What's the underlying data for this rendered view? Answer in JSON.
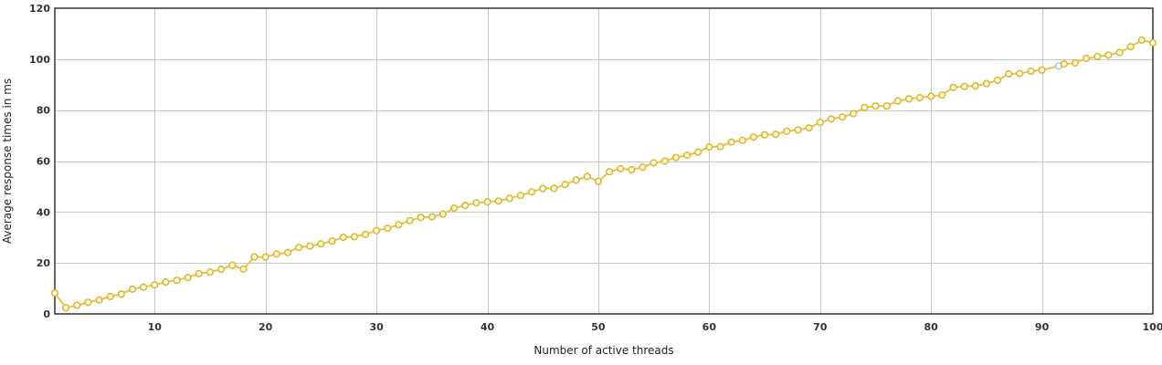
{
  "chart_data": {
    "type": "line",
    "title": "",
    "xlabel": "Number of active threads",
    "ylabel": "Average response times in ms",
    "xlim": [
      1,
      100
    ],
    "ylim": [
      0,
      120
    ],
    "x_ticks": [
      10,
      20,
      30,
      40,
      50,
      60,
      70,
      80,
      90,
      100
    ],
    "y_ticks": [
      0,
      20,
      40,
      60,
      80,
      100,
      120
    ],
    "grid": true,
    "legend": "none",
    "colors": {
      "line": "#e8c34a",
      "point_fill": "#fffde8",
      "point_stroke": "#e0b830",
      "highlight_point_stroke": "#a9c8e8",
      "grid": "#c8c8c8",
      "frame": "#333333"
    },
    "highlight_point_index": 90,
    "series": [
      {
        "x": [
          1,
          2,
          3,
          4,
          5,
          6,
          7,
          8,
          9,
          10,
          11,
          12,
          13,
          14,
          15,
          16,
          17,
          18,
          19,
          20,
          21,
          22,
          23,
          24,
          25,
          26,
          27,
          28,
          29,
          30,
          31,
          32,
          33,
          34,
          35,
          36,
          37,
          38,
          39,
          40,
          41,
          42,
          43,
          44,
          45,
          46,
          47,
          48,
          49,
          50,
          51,
          52,
          53,
          54,
          55,
          56,
          57,
          58,
          59,
          60,
          61,
          62,
          63,
          64,
          65,
          66,
          67,
          68,
          69,
          70,
          71,
          72,
          73,
          74,
          75,
          76,
          77,
          78,
          79,
          80,
          81,
          82,
          83,
          84,
          85,
          86,
          87,
          88,
          89,
          90,
          91.5,
          92,
          93,
          94,
          95,
          96,
          97,
          98,
          99,
          100
        ],
        "values": [
          8.2,
          2.4,
          3.4,
          4.5,
          5.5,
          6.8,
          7.8,
          9.7,
          10.5,
          11.4,
          12.5,
          13.2,
          14.3,
          15.8,
          16.4,
          17.5,
          19.1,
          17.6,
          22.4,
          22.3,
          23.5,
          24.1,
          26.1,
          26.6,
          27.5,
          28.6,
          30.1,
          30.3,
          31.2,
          32.7,
          33.6,
          35.0,
          36.6,
          37.9,
          38.1,
          39.2,
          41.5,
          42.6,
          43.6,
          44.0,
          44.3,
          45.4,
          46.5,
          47.9,
          49.2,
          49.3,
          50.8,
          52.5,
          54.0,
          52.0,
          55.8,
          57.0,
          56.6,
          57.6,
          59.3,
          60.0,
          61.4,
          62.3,
          63.5,
          65.5,
          65.7,
          67.5,
          68.1,
          69.4,
          70.3,
          70.5,
          71.7,
          72.2,
          73.0,
          75.2,
          76.5,
          77.3,
          78.6,
          81.0,
          81.6,
          81.6,
          83.6,
          84.4,
          84.9,
          85.4,
          85.9,
          88.9,
          89.3,
          89.5,
          90.4,
          91.7,
          94.2,
          94.4,
          95.3,
          95.7,
          97.3,
          98.1,
          98.5,
          100.3,
          101.0,
          101.6,
          102.6,
          104.9,
          107.5,
          106.4
        ]
      }
    ]
  }
}
